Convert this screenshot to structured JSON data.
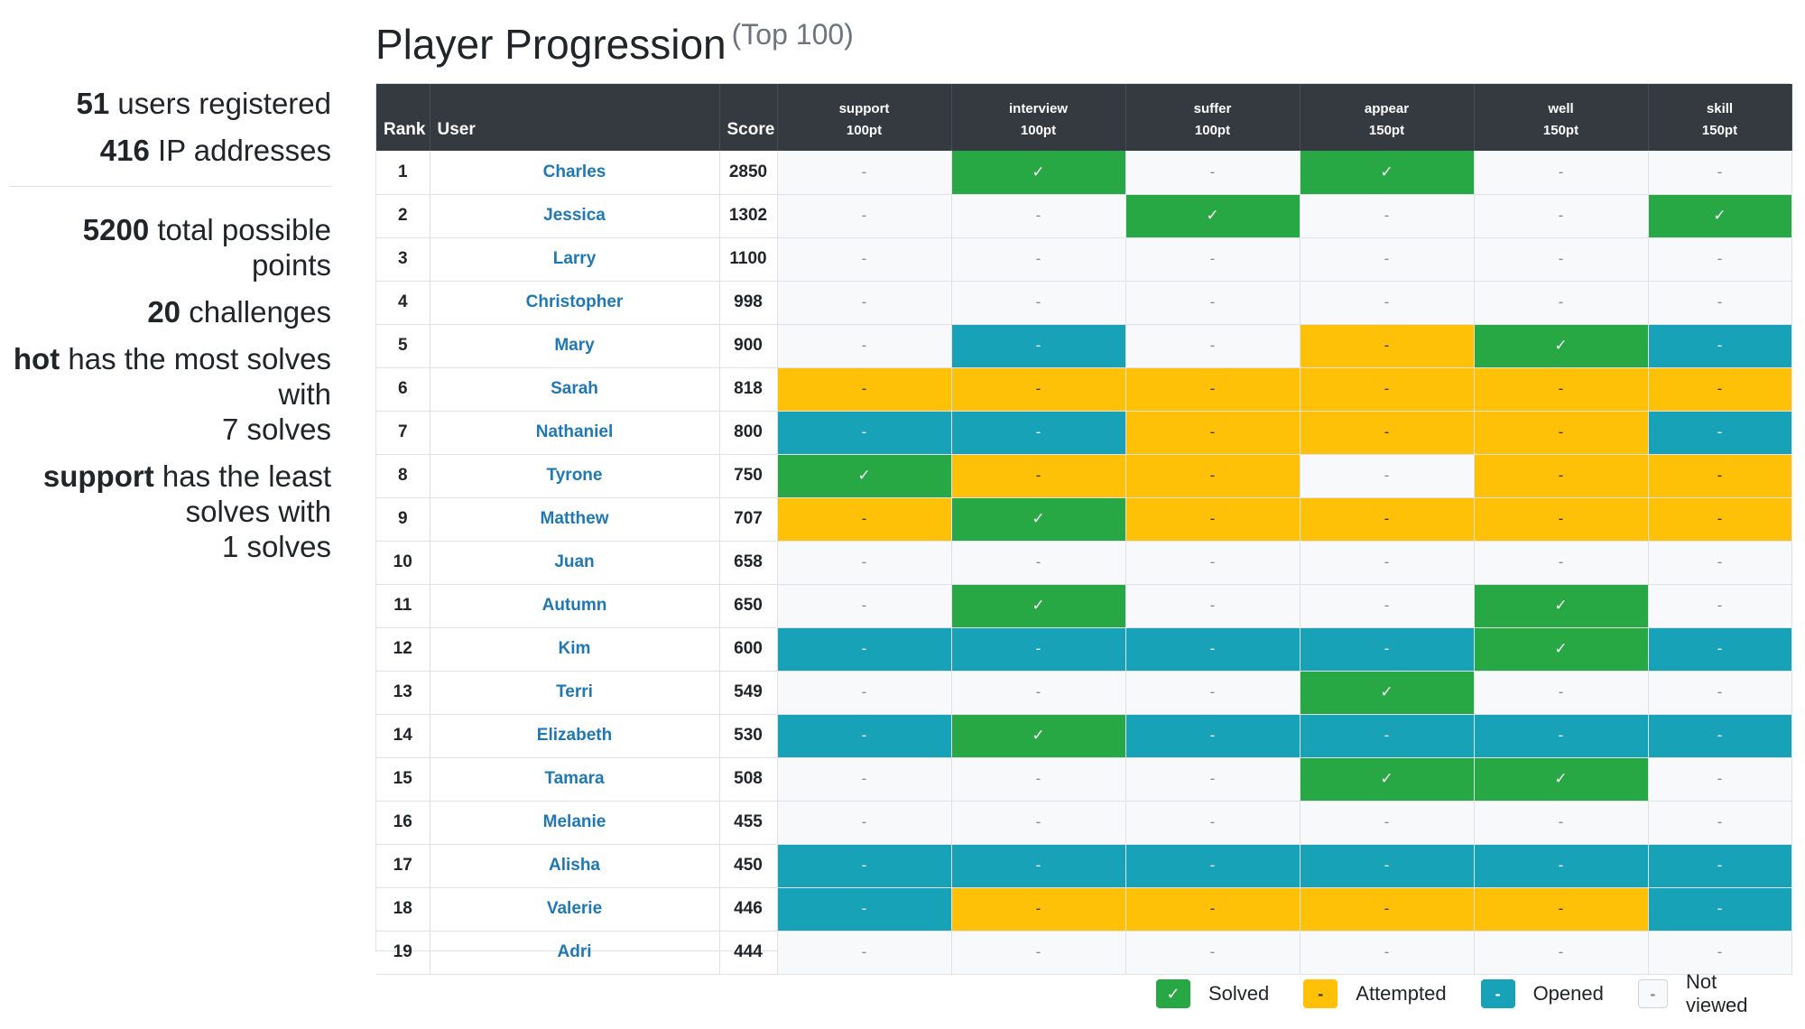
{
  "title": "Player Progression",
  "title_sub": "(Top 100)",
  "stats": {
    "users_count": "51",
    "users_label": "users registered",
    "ip_count": "416",
    "ip_label": "IP addresses",
    "points_count": "5200",
    "points_label": "total possible points",
    "challenges_count": "20",
    "challenges_label": "challenges",
    "most_name": "hot",
    "most_text": "has the most solves with",
    "most_count": "7 solves",
    "least_name": "support",
    "least_text": "has the least solves with",
    "least_count": "1 solves"
  },
  "table": {
    "headers": {
      "rank": "Rank",
      "user": "User",
      "score": "Score"
    },
    "challenges": [
      {
        "name": "support",
        "points": "100pt"
      },
      {
        "name": "interview",
        "points": "100pt"
      },
      {
        "name": "suffer",
        "points": "100pt"
      },
      {
        "name": "appear",
        "points": "150pt"
      },
      {
        "name": "well",
        "points": "150pt"
      },
      {
        "name": "skill",
        "points": "150pt"
      }
    ],
    "rows": [
      {
        "rank": "1",
        "user": "Charles",
        "score": "2850",
        "cells": [
          "N",
          "S",
          "N",
          "S",
          "N",
          "N"
        ]
      },
      {
        "rank": "2",
        "user": "Jessica",
        "score": "1302",
        "cells": [
          "N",
          "N",
          "S",
          "N",
          "N",
          "S"
        ]
      },
      {
        "rank": "3",
        "user": "Larry",
        "score": "1100",
        "cells": [
          "N",
          "N",
          "N",
          "N",
          "N",
          "N"
        ]
      },
      {
        "rank": "4",
        "user": "Christopher",
        "score": "998",
        "cells": [
          "N",
          "N",
          "N",
          "N",
          "N",
          "N"
        ]
      },
      {
        "rank": "5",
        "user": "Mary",
        "score": "900",
        "cells": [
          "N",
          "O",
          "N",
          "A",
          "S",
          "O"
        ]
      },
      {
        "rank": "6",
        "user": "Sarah",
        "score": "818",
        "cells": [
          "A",
          "A",
          "A",
          "A",
          "A",
          "A"
        ]
      },
      {
        "rank": "7",
        "user": "Nathaniel",
        "score": "800",
        "cells": [
          "O",
          "O",
          "A",
          "A",
          "A",
          "O"
        ]
      },
      {
        "rank": "8",
        "user": "Tyrone",
        "score": "750",
        "cells": [
          "S",
          "A",
          "A",
          "N",
          "A",
          "A"
        ]
      },
      {
        "rank": "9",
        "user": "Matthew",
        "score": "707",
        "cells": [
          "A",
          "S",
          "A",
          "A",
          "A",
          "A"
        ]
      },
      {
        "rank": "10",
        "user": "Juan",
        "score": "658",
        "cells": [
          "N",
          "N",
          "N",
          "N",
          "N",
          "N"
        ]
      },
      {
        "rank": "11",
        "user": "Autumn",
        "score": "650",
        "cells": [
          "N",
          "S",
          "N",
          "N",
          "S",
          "N"
        ]
      },
      {
        "rank": "12",
        "user": "Kim",
        "score": "600",
        "cells": [
          "O",
          "O",
          "O",
          "O",
          "S",
          "O"
        ]
      },
      {
        "rank": "13",
        "user": "Terri",
        "score": "549",
        "cells": [
          "N",
          "N",
          "N",
          "S",
          "N",
          "N"
        ]
      },
      {
        "rank": "14",
        "user": "Elizabeth",
        "score": "530",
        "cells": [
          "O",
          "S",
          "O",
          "O",
          "O",
          "O"
        ]
      },
      {
        "rank": "15",
        "user": "Tamara",
        "score": "508",
        "cells": [
          "N",
          "N",
          "N",
          "S",
          "S",
          "N"
        ]
      },
      {
        "rank": "16",
        "user": "Melanie",
        "score": "455",
        "cells": [
          "N",
          "N",
          "N",
          "N",
          "N",
          "N"
        ]
      },
      {
        "rank": "17",
        "user": "Alisha",
        "score": "450",
        "cells": [
          "O",
          "O",
          "O",
          "O",
          "O",
          "O"
        ]
      },
      {
        "rank": "18",
        "user": "Valerie",
        "score": "446",
        "cells": [
          "O",
          "A",
          "A",
          "A",
          "A",
          "O"
        ]
      },
      {
        "rank": "19",
        "user": "Adri",
        "score": "444",
        "cells": [
          "N",
          "N",
          "N",
          "N",
          "N",
          "N"
        ]
      }
    ]
  },
  "symbols": {
    "solved": "✓",
    "other": "-"
  },
  "legend": [
    {
      "key": "S",
      "label": "Solved",
      "symbol": "✓"
    },
    {
      "key": "A",
      "label": "Attempted",
      "symbol": "-"
    },
    {
      "key": "O",
      "label": "Opened",
      "symbol": "-"
    },
    {
      "key": "N",
      "label": "Not viewed",
      "symbol": "-"
    }
  ],
  "colors": {
    "solved": "#28a745",
    "attempted": "#ffc107",
    "opened": "#17a2b8",
    "not_viewed": "#f8f9fa",
    "header_bg": "#343a40",
    "link": "#1f78b4"
  }
}
